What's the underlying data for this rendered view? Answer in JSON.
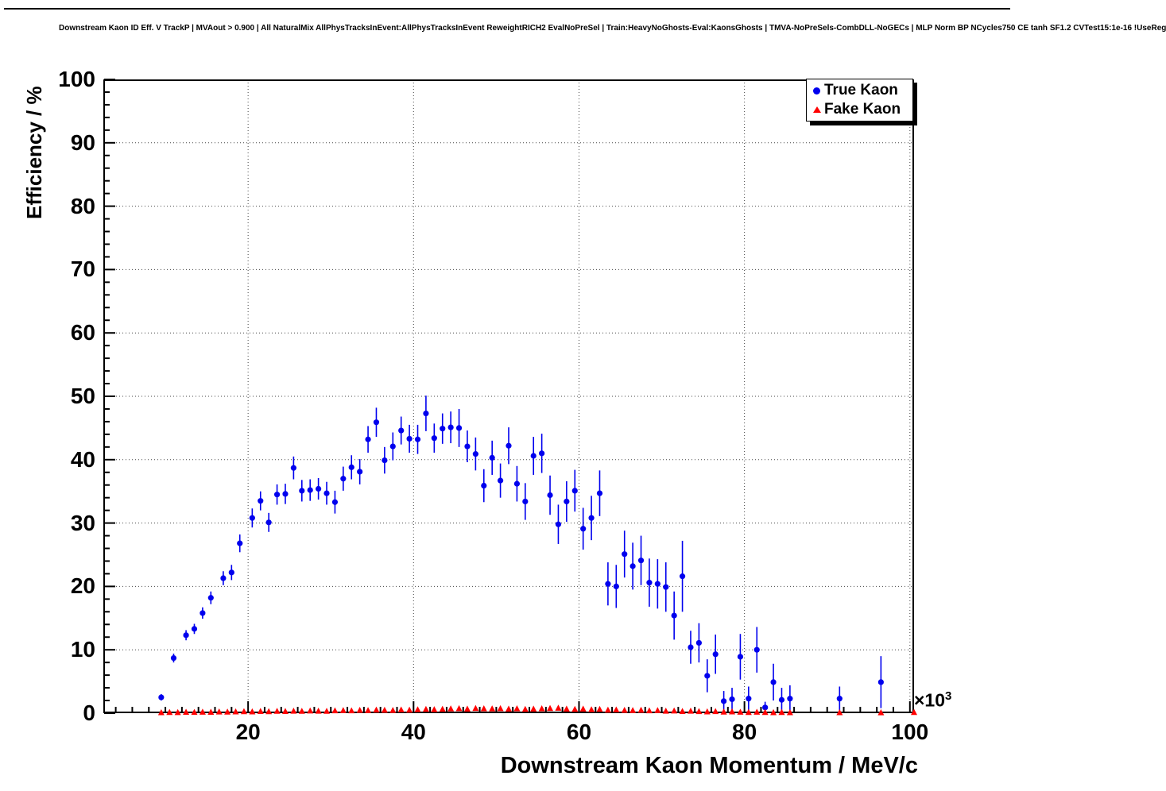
{
  "chart_data": {
    "type": "scatter",
    "title": "Downstream Kaon ID Eff. V TrackP | MVAout > 0.900 | All NaturalMix AllPhysTracksInEvent:AllPhysTracksInEvent ReweightRICH2 EvalNoPreSel | Train:HeavyNoGhosts-Eval:KaonsGhosts | TMVA-NoPreSels-CombDLL-NoGECs | MLP Norm BP NCycles750 CE tanh SF1.2 CVTest15:1e-16 !UseReg",
    "xlabel": "Downstream Kaon Momentum / MeV/c",
    "ylabel": "Efficiency / %",
    "x_axis_multiplier": "×10",
    "x_axis_multiplier_exponent": "3",
    "x_units_scale": "MeV/c × 10^3",
    "xlim": [
      2.5,
      100.5
    ],
    "ylim": [
      0,
      100
    ],
    "x_ticks": [
      20,
      40,
      60,
      80,
      100
    ],
    "y_ticks": [
      0,
      10,
      20,
      30,
      40,
      50,
      60,
      70,
      80,
      90,
      100
    ],
    "x_minor_step": 2,
    "y_minor_step": 2,
    "grid": true,
    "legend": {
      "position": "top-right",
      "entries": [
        {
          "label": "True Kaon",
          "color": "#0000ee",
          "marker": "circle"
        },
        {
          "label": "Fake Kaon",
          "color": "#ff0000",
          "marker": "triangle"
        }
      ]
    },
    "series": [
      {
        "name": "True Kaon",
        "marker": "circle",
        "color": "#0000ee",
        "points": [
          [
            9.5,
            2.5,
            0.5
          ],
          [
            11.0,
            8.7,
            0.7
          ],
          [
            12.5,
            12.3,
            0.8
          ],
          [
            13.5,
            13.3,
            0.8
          ],
          [
            14.5,
            15.8,
            0.9
          ],
          [
            15.5,
            18.2,
            1.0
          ],
          [
            17.0,
            21.3,
            1.1
          ],
          [
            18.0,
            22.2,
            1.2
          ],
          [
            19.0,
            26.8,
            1.4
          ],
          [
            20.5,
            30.8,
            1.5
          ],
          [
            21.5,
            33.5,
            1.5
          ],
          [
            22.5,
            30.1,
            1.5
          ],
          [
            23.5,
            34.5,
            1.6
          ],
          [
            24.5,
            34.6,
            1.6
          ],
          [
            25.5,
            38.7,
            1.8
          ],
          [
            26.5,
            35.1,
            1.7
          ],
          [
            27.5,
            35.2,
            1.7
          ],
          [
            28.5,
            35.4,
            1.7
          ],
          [
            29.5,
            34.7,
            1.8
          ],
          [
            30.5,
            33.3,
            1.8
          ],
          [
            31.5,
            37.0,
            1.9
          ],
          [
            32.5,
            38.8,
            1.9
          ],
          [
            33.5,
            38.1,
            2.0
          ],
          [
            34.5,
            43.2,
            2.1
          ],
          [
            35.5,
            45.9,
            2.3
          ],
          [
            36.5,
            39.9,
            2.1
          ],
          [
            37.5,
            42.1,
            2.2
          ],
          [
            38.5,
            44.6,
            2.2
          ],
          [
            39.5,
            43.3,
            2.2
          ],
          [
            40.5,
            43.2,
            2.3
          ],
          [
            41.5,
            47.3,
            2.8
          ],
          [
            42.5,
            43.4,
            2.3
          ],
          [
            43.5,
            44.9,
            2.4
          ],
          [
            44.5,
            45.1,
            2.5
          ],
          [
            45.5,
            45.0,
            3.0
          ],
          [
            46.5,
            42.1,
            2.5
          ],
          [
            47.5,
            40.9,
            2.6
          ],
          [
            48.5,
            35.9,
            2.6
          ],
          [
            49.5,
            40.3,
            2.7
          ],
          [
            50.5,
            36.7,
            2.7
          ],
          [
            51.5,
            42.2,
            2.9
          ],
          [
            52.5,
            36.2,
            2.8
          ],
          [
            53.5,
            33.4,
            2.9
          ],
          [
            54.5,
            40.6,
            3.0
          ],
          [
            55.5,
            41.0,
            3.1
          ],
          [
            56.5,
            34.4,
            3.1
          ],
          [
            57.5,
            29.8,
            3.1
          ],
          [
            58.5,
            33.4,
            3.2
          ],
          [
            59.5,
            35.1,
            3.3
          ],
          [
            60.5,
            29.1,
            3.3
          ],
          [
            61.5,
            30.8,
            3.5
          ],
          [
            62.5,
            34.7,
            3.6
          ],
          [
            63.5,
            20.4,
            3.4
          ],
          [
            64.5,
            20.0,
            3.4
          ],
          [
            65.5,
            25.1,
            3.7
          ],
          [
            66.5,
            23.2,
            3.7
          ],
          [
            67.5,
            24.1,
            3.9
          ],
          [
            68.5,
            20.6,
            3.8
          ],
          [
            69.5,
            20.4,
            3.9
          ],
          [
            70.5,
            19.9,
            3.9
          ],
          [
            71.5,
            15.4,
            3.8
          ],
          [
            72.5,
            21.6,
            5.6
          ],
          [
            73.5,
            10.4,
            2.6
          ],
          [
            74.5,
            11.1,
            3.1
          ],
          [
            75.5,
            5.9,
            2.6
          ],
          [
            76.5,
            9.3,
            3.1
          ],
          [
            77.5,
            1.9,
            1.6
          ],
          [
            78.5,
            2.2,
            1.8
          ],
          [
            79.5,
            8.9,
            3.6
          ],
          [
            80.5,
            2.3,
            1.9
          ],
          [
            81.5,
            10.0,
            3.6
          ],
          [
            82.5,
            0.9,
            0.9
          ],
          [
            83.5,
            4.9,
            2.9
          ],
          [
            84.5,
            2.1,
            1.9
          ],
          [
            85.5,
            2.3,
            2.1
          ],
          [
            91.5,
            2.3,
            1.9
          ],
          [
            96.5,
            4.9,
            4.1
          ]
        ]
      },
      {
        "name": "Fake Kaon",
        "marker": "triangle",
        "color": "#ff0000",
        "points": [
          [
            9.5,
            0.08
          ],
          [
            10.5,
            0.12
          ],
          [
            11.5,
            0.1
          ],
          [
            12.5,
            0.15
          ],
          [
            13.5,
            0.13
          ],
          [
            14.5,
            0.17
          ],
          [
            15.5,
            0.15
          ],
          [
            16.5,
            0.2
          ],
          [
            17.5,
            0.18
          ],
          [
            18.5,
            0.22
          ],
          [
            19.5,
            0.25
          ],
          [
            20.5,
            0.22
          ],
          [
            21.5,
            0.28
          ],
          [
            22.5,
            0.25
          ],
          [
            23.5,
            0.3
          ],
          [
            24.5,
            0.28
          ],
          [
            25.5,
            0.32
          ],
          [
            26.5,
            0.3
          ],
          [
            27.5,
            0.35
          ],
          [
            28.5,
            0.32
          ],
          [
            29.5,
            0.3
          ],
          [
            30.5,
            0.38
          ],
          [
            31.5,
            0.42
          ],
          [
            32.5,
            0.38
          ],
          [
            33.5,
            0.45
          ],
          [
            34.5,
            0.42
          ],
          [
            35.5,
            0.5
          ],
          [
            36.5,
            0.46
          ],
          [
            37.5,
            0.44
          ],
          [
            38.5,
            0.52
          ],
          [
            39.5,
            0.48
          ],
          [
            40.5,
            0.55
          ],
          [
            41.5,
            0.6
          ],
          [
            42.5,
            0.56
          ],
          [
            43.5,
            0.62
          ],
          [
            44.5,
            0.68
          ],
          [
            45.5,
            0.72
          ],
          [
            46.5,
            0.65
          ],
          [
            47.5,
            0.75
          ],
          [
            48.5,
            0.7
          ],
          [
            49.5,
            0.68
          ],
          [
            50.5,
            0.72
          ],
          [
            51.5,
            0.65
          ],
          [
            52.5,
            0.7
          ],
          [
            53.5,
            0.6
          ],
          [
            54.5,
            0.65
          ],
          [
            55.5,
            0.7
          ],
          [
            56.5,
            0.75
          ],
          [
            57.5,
            0.8
          ],
          [
            58.5,
            0.65
          ],
          [
            59.5,
            0.6
          ],
          [
            60.5,
            0.65
          ],
          [
            61.5,
            0.55
          ],
          [
            62.5,
            0.6
          ],
          [
            63.5,
            0.48
          ],
          [
            64.5,
            0.52
          ],
          [
            65.5,
            0.45
          ],
          [
            66.5,
            0.42
          ],
          [
            67.5,
            0.46
          ],
          [
            68.5,
            0.38
          ],
          [
            69.5,
            0.42
          ],
          [
            70.5,
            0.32
          ],
          [
            71.5,
            0.36
          ],
          [
            72.5,
            0.28
          ],
          [
            73.5,
            0.32
          ],
          [
            74.5,
            0.26
          ],
          [
            75.5,
            0.22
          ],
          [
            76.5,
            0.26
          ],
          [
            77.5,
            0.18
          ],
          [
            78.5,
            0.22
          ],
          [
            79.5,
            0.16
          ],
          [
            80.5,
            0.12
          ],
          [
            81.5,
            0.16
          ],
          [
            82.5,
            0.12
          ],
          [
            83.5,
            0.09
          ],
          [
            84.5,
            0.12
          ],
          [
            85.5,
            0.08
          ],
          [
            91.5,
            0.08
          ],
          [
            96.5,
            0.07
          ],
          [
            100.5,
            0.12
          ]
        ]
      }
    ]
  }
}
